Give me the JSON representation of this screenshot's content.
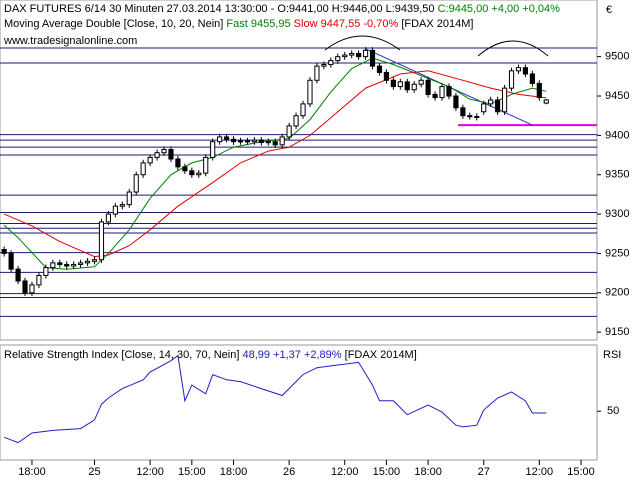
{
  "chart_data": [
    {
      "type": "candlestick",
      "title": "DAX FUTURES 6/14 30 Minuten  27.03.2014 13:30:00 - O:9441,00 H:9446,00 L:9439,50",
      "change": "C:9445,00 +4,00 +0,04%",
      "indicator": "Moving Average Double [Close, 10, 20, Nein]",
      "source": "[FDAX 2014M]",
      "watermark": "www.tradesignalonline.com",
      "currency": "€",
      "xlim": [
        -0.6,
        85.3
      ],
      "ylim": [
        9140,
        9572
      ],
      "yticks": [
        9150,
        9200,
        9250,
        9300,
        9350,
        9400,
        9450,
        9500
      ],
      "xticks": [
        {
          "value": 4,
          "label": "18:00"
        },
        {
          "value": 13,
          "label": "25"
        },
        {
          "value": 21,
          "label": "12:00"
        },
        {
          "value": 27,
          "label": "15:00"
        },
        {
          "value": 33,
          "label": "18:00"
        },
        {
          "value": 41,
          "label": "26"
        },
        {
          "value": 49,
          "label": "12:00"
        },
        {
          "value": 55,
          "label": "15:00"
        },
        {
          "value": 61,
          "label": "18:00"
        },
        {
          "value": 69,
          "label": "27"
        },
        {
          "value": 77,
          "label": "12:00"
        },
        {
          "value": 83,
          "label": "15:00"
        }
      ],
      "open": [
        9255,
        9250,
        9230,
        9215,
        9200,
        9210,
        9222,
        9232,
        9238,
        9236,
        9234,
        9236,
        9238,
        9240,
        9242,
        9290,
        9300,
        9310,
        9312,
        9328,
        9350,
        9365,
        9372,
        9378,
        9382,
        9370,
        9360,
        9355,
        9350,
        9352,
        9372,
        9392,
        9398,
        9395,
        9392,
        9393,
        9392,
        9394,
        9391,
        9392,
        9388,
        9398,
        9412,
        9425,
        9440,
        9470,
        9488,
        9490,
        9495,
        9500,
        9502,
        9504,
        9500,
        9508,
        9488,
        9480,
        9470,
        9462,
        9468,
        9458,
        9465,
        9470,
        9452,
        9448,
        9462,
        9450,
        9435,
        9425,
        9424,
        9430,
        9440,
        9445,
        9430,
        9460,
        9482,
        9486,
        9478,
        9466,
        9441
      ],
      "high": [
        9259,
        9254,
        9234,
        9219,
        9214,
        9226,
        9236,
        9242,
        9242,
        9240,
        9240,
        9242,
        9244,
        9246,
        9294,
        9304,
        9314,
        9316,
        9332,
        9354,
        9369,
        9376,
        9382,
        9386,
        9386,
        9374,
        9364,
        9359,
        9356,
        9376,
        9396,
        9402,
        9402,
        9399,
        9397,
        9397,
        9398,
        9398,
        9396,
        9396,
        9402,
        9416,
        9429,
        9444,
        9474,
        9492,
        9494,
        9499,
        9504,
        9506,
        9508,
        9508,
        9512,
        9512,
        9492,
        9484,
        9474,
        9472,
        9472,
        9469,
        9474,
        9474,
        9456,
        9466,
        9466,
        9454,
        9439,
        9429,
        9428,
        9444,
        9449,
        9449,
        9464,
        9486,
        9490,
        9490,
        9482,
        9470,
        9446
      ],
      "low": [
        9246,
        9226,
        9211,
        9196,
        9196,
        9206,
        9218,
        9228,
        9232,
        9230,
        9230,
        9232,
        9234,
        9236,
        9238,
        9286,
        9296,
        9306,
        9308,
        9324,
        9346,
        9361,
        9368,
        9374,
        9366,
        9356,
        9351,
        9346,
        9346,
        9348,
        9368,
        9388,
        9391,
        9388,
        9388,
        9388,
        9388,
        9387,
        9387,
        9384,
        9384,
        9394,
        9408,
        9421,
        9436,
        9466,
        9484,
        9486,
        9491,
        9496,
        9498,
        9496,
        9496,
        9484,
        9476,
        9466,
        9458,
        9458,
        9454,
        9454,
        9461,
        9448,
        9444,
        9444,
        9446,
        9431,
        9421,
        9420,
        9419,
        9426,
        9436,
        9426,
        9426,
        9456,
        9478,
        9474,
        9462,
        9444,
        9439.5
      ],
      "close": [
        9250,
        9230,
        9215,
        9200,
        9210,
        9222,
        9232,
        9238,
        9236,
        9234,
        9236,
        9238,
        9240,
        9242,
        9290,
        9300,
        9310,
        9312,
        9328,
        9350,
        9365,
        9372,
        9378,
        9382,
        9370,
        9360,
        9355,
        9350,
        9352,
        9372,
        9392,
        9398,
        9395,
        9392,
        9393,
        9392,
        9394,
        9391,
        9392,
        9388,
        9398,
        9412,
        9425,
        9440,
        9470,
        9488,
        9490,
        9495,
        9500,
        9502,
        9504,
        9500,
        9508,
        9488,
        9480,
        9470,
        9462,
        9468,
        9458,
        9465,
        9470,
        9452,
        9448,
        9462,
        9450,
        9435,
        9425,
        9424,
        9423,
        9440,
        9445,
        9430,
        9460,
        9482,
        9486,
        9478,
        9466,
        9448,
        9445
      ],
      "series": [
        {
          "name": "Fast 9455,95",
          "color": "#008000",
          "x": [
            0,
            2,
            6,
            9,
            13,
            15,
            18,
            21,
            24,
            27,
            30,
            33,
            37,
            41,
            44,
            47,
            50,
            53,
            56,
            60,
            64,
            67,
            70,
            73,
            76,
            78
          ],
          "values": [
            9286,
            9270,
            9232,
            9230,
            9233,
            9250,
            9280,
            9320,
            9350,
            9365,
            9372,
            9385,
            9392,
            9396,
            9420,
            9455,
            9485,
            9498,
            9490,
            9476,
            9462,
            9446,
            9440,
            9452,
            9460,
            9455.95
          ]
        },
        {
          "name": "Slow 9447,55 -0,70%",
          "color": "#e00000",
          "x": [
            0,
            4,
            8,
            13,
            15,
            18,
            21,
            25,
            30,
            34,
            38,
            41,
            44,
            48,
            52,
            57,
            61,
            66,
            70,
            74,
            78
          ],
          "values": [
            9300,
            9285,
            9265,
            9246,
            9248,
            9260,
            9280,
            9310,
            9340,
            9365,
            9380,
            9385,
            9400,
            9430,
            9460,
            9478,
            9482,
            9470,
            9460,
            9452,
            9447.55
          ]
        }
      ],
      "levels": [
        9511,
        9492,
        9401,
        9394,
        9385,
        9375,
        9324,
        9302,
        9288,
        9282,
        9276,
        9251,
        9226,
        9199,
        9194,
        9170
      ],
      "level_color": "#1a1a70",
      "support": 9413,
      "support_color": "#e000e0",
      "trendline": {
        "x": [
          52,
          76
        ],
        "values": [
          9510,
          9413
        ],
        "color": "#3030c0"
      }
    },
    {
      "type": "line",
      "title": "Relative Strength Index [Close, 14, 30, 70, Nein]",
      "stats": "48,99 +1,37 +2,89%",
      "source": "[FDAX 2014M]",
      "axis_label": "RSI",
      "xlim": [
        -0.6,
        85.3
      ],
      "ylim": [
        22,
        88
      ],
      "yticks": [
        50
      ],
      "color": "#2020c0",
      "x": [
        0,
        2,
        4,
        7,
        11,
        13,
        14,
        15,
        17,
        20,
        21,
        24,
        25,
        26,
        27,
        29,
        30,
        32,
        34,
        37,
        40,
        41,
        43,
        45,
        48,
        51,
        53,
        54,
        56,
        58,
        61,
        63,
        65,
        66,
        68,
        69,
        71,
        73,
        75,
        76,
        78
      ],
      "values": [
        35,
        32,
        37.5,
        39,
        40,
        45,
        54,
        57.6,
        63,
        68,
        72.5,
        79,
        82,
        56,
        65,
        60,
        71,
        68,
        67,
        63,
        59,
        63,
        71,
        75,
        76.5,
        78,
        65,
        56,
        56,
        48,
        53.5,
        49.5,
        42,
        41,
        42,
        50.7,
        57.6,
        61,
        56,
        49,
        48.99
      ]
    }
  ]
}
